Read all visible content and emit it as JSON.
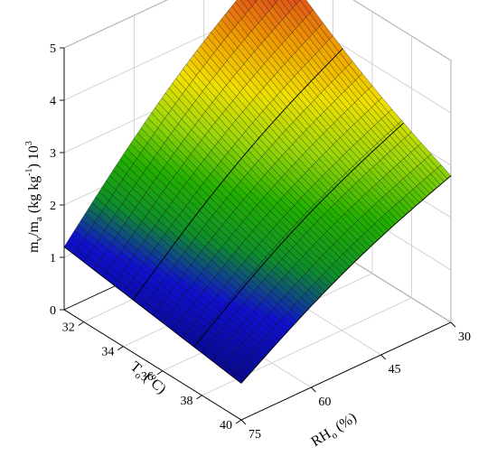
{
  "chart_data": {
    "type": "surface3d",
    "title": "",
    "z_axis": {
      "label_parts": {
        "m": "m",
        "v": "v",
        "slash": "/m",
        "a": "a",
        "unit_open": " (kg kg",
        "exp": "-1",
        "unit_close": ") 10",
        "pow": "3"
      },
      "range": [
        0,
        5
      ],
      "ticks": [
        "0",
        "1",
        "2",
        "3",
        "4",
        "5"
      ]
    },
    "t_axis": {
      "label_parts": {
        "T": "T",
        "o": "o",
        "unit_open": " (",
        "deg": "o",
        "unit_close": "C)"
      },
      "range": [
        31,
        40
      ],
      "ticks": [
        "32",
        "34",
        "36",
        "38",
        "40"
      ]
    },
    "rh_axis": {
      "label_parts": {
        "RH": "RH",
        "o": "o",
        "unit": " (%)"
      },
      "range": [
        30,
        75
      ],
      "ticks": [
        "30",
        "45",
        "60",
        "75"
      ]
    },
    "surface": {
      "corners": [
        {
          "T_o": 31,
          "RH_o": 30,
          "value": 4.9
        },
        {
          "T_o": 31,
          "RH_o": 75,
          "value": 1.2
        },
        {
          "T_o": 40,
          "RH_o": 30,
          "value": 2.8
        },
        {
          "T_o": 40,
          "RH_o": 75,
          "value": 0.7
        }
      ],
      "colormap": [
        "#00004a",
        "#0a0a9a",
        "#1010d0",
        "#0f8f2a",
        "#22b000",
        "#9ad60a",
        "#f0e000",
        "#f0a000",
        "#e0501a",
        "#c41010"
      ]
    },
    "grid": true
  }
}
